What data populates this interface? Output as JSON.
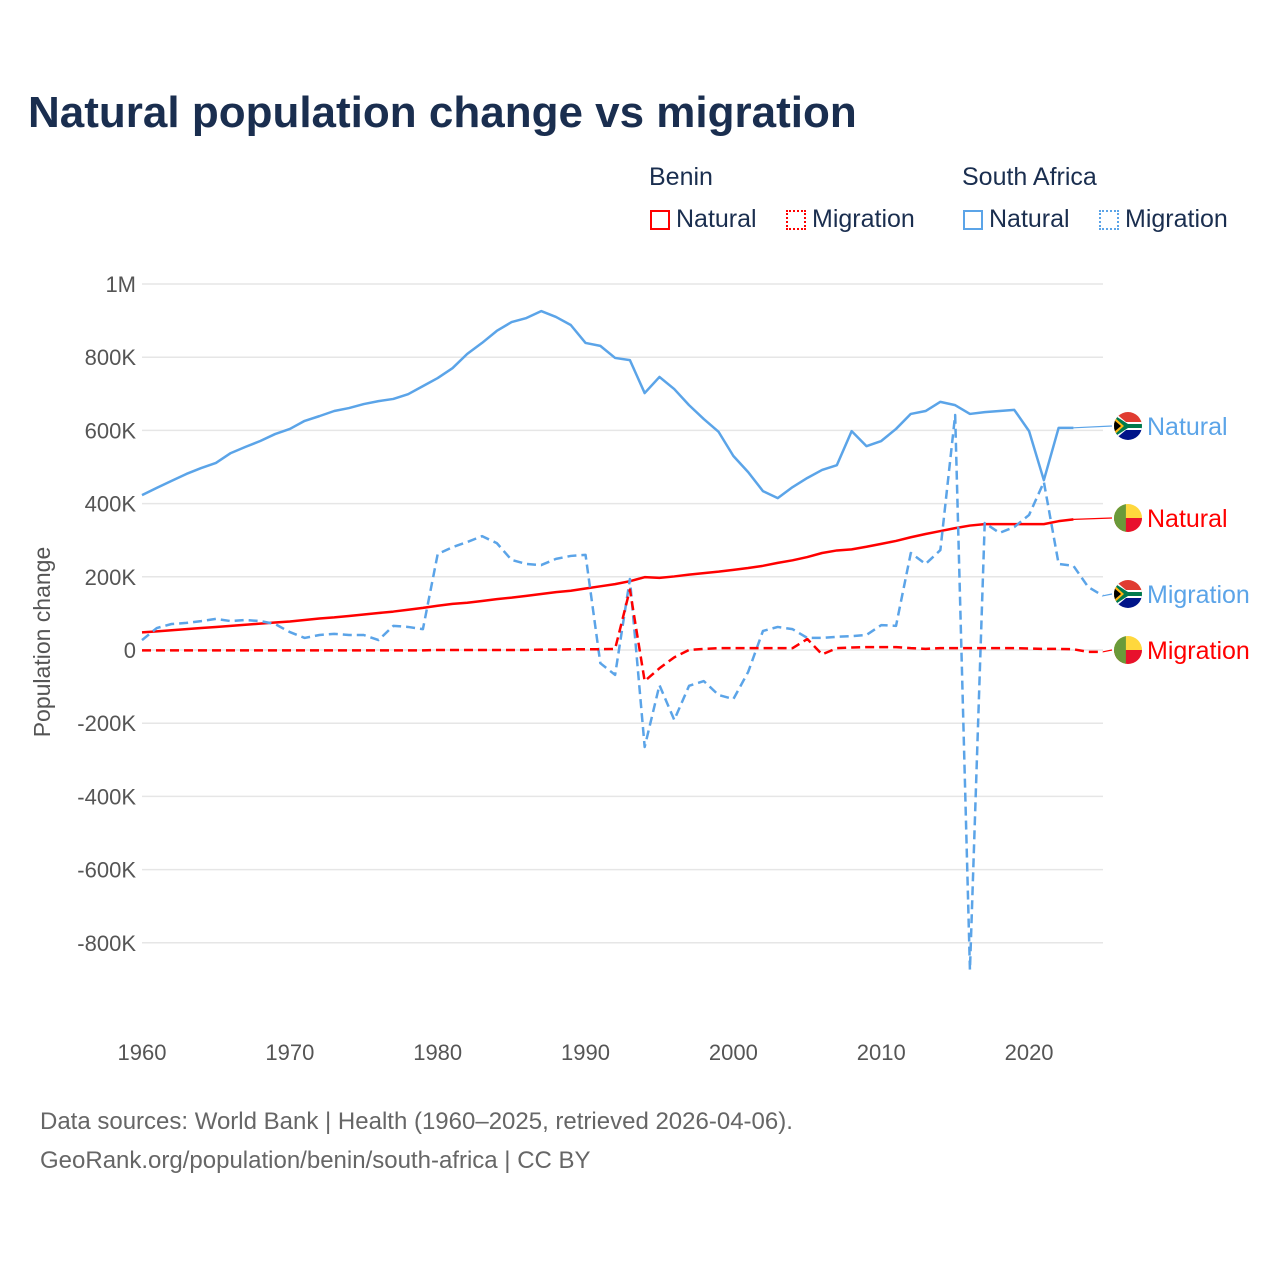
{
  "title": "Natural population change vs migration",
  "legend": {
    "groups": [
      {
        "name": "Benin",
        "items": [
          "Natural",
          "Migration"
        ]
      },
      {
        "name": "South Africa",
        "items": [
          "Natural",
          "Migration"
        ]
      }
    ]
  },
  "end_labels": {
    "sa_natural": "Natural",
    "benin_natural": "Natural",
    "sa_migration": "Migration",
    "benin_migration": "Migration"
  },
  "colors": {
    "benin": "#ff0000",
    "south_africa": "#5ba4e8",
    "grid": "#e6e6e6",
    "title": "#1a2e4f"
  },
  "sources": {
    "line1": "Data sources: World Bank | Health (1960–2025, retrieved 2026-04-06).",
    "line2": "GeoRank.org/population/benin/south-africa | CC BY"
  },
  "chart_data": {
    "type": "line",
    "title": "Natural population change vs migration",
    "xlabel": "",
    "ylabel": "Population change",
    "xlim": [
      1960,
      2025
    ],
    "ylim": [
      -1000000,
      1000000
    ],
    "x_ticks": [
      1960,
      1970,
      1980,
      1990,
      2000,
      2010,
      2020
    ],
    "x_tick_labels": [
      "1960",
      "1970",
      "1980",
      "1990",
      "2000",
      "2010",
      "2020"
    ],
    "y_ticks": [
      1000000,
      800000,
      600000,
      400000,
      200000,
      0,
      -200000,
      -400000,
      -600000,
      -800000
    ],
    "y_tick_labels": [
      "1M",
      "800K",
      "600K",
      "400K",
      "200K",
      "0",
      "-200K",
      "-400K",
      "-600K",
      "-800K"
    ],
    "grid": true,
    "legend_position": "top-right",
    "series": [
      {
        "key": "sa_natural",
        "name": "South Africa Natural",
        "color": "#5ba4e8",
        "dash": false,
        "start": 1960,
        "values": [
          423000,
          443000,
          462000,
          481000,
          497000,
          511000,
          538000,
          555000,
          571000,
          590000,
          604000,
          626000,
          639000,
          653000,
          661000,
          672000,
          680000,
          686000,
          699000,
          721000,
          743000,
          770000,
          809000,
          839000,
          872000,
          896000,
          907000,
          926000,
          910000,
          888000,
          839000,
          831000,
          798000,
          792000,
          702000,
          746000,
          713000,
          669000,
          631000,
          596000,
          530000,
          486000,
          434000,
          415000,
          445000,
          470000,
          492000,
          505000,
          598000,
          557000,
          571000,
          604000,
          645000,
          653000,
          678000,
          669000,
          645000,
          650000,
          653000,
          656000,
          598000,
          464000,
          607000,
          607000
        ]
      },
      {
        "key": "benin_natural",
        "name": "Benin Natural",
        "color": "#ff0000",
        "dash": false,
        "start": 1960,
        "values": [
          48000,
          51000,
          54000,
          57000,
          60000,
          63000,
          66000,
          69000,
          72000,
          75000,
          78000,
          82000,
          86000,
          89000,
          93000,
          97000,
          101000,
          105000,
          110000,
          115000,
          121000,
          126000,
          129000,
          134000,
          139000,
          143000,
          148000,
          153000,
          158000,
          162000,
          168000,
          174000,
          180000,
          188000,
          199000,
          197000,
          201000,
          206000,
          210000,
          214000,
          219000,
          224000,
          230000,
          238000,
          245000,
          254000,
          265000,
          272000,
          275000,
          282000,
          290000,
          298000,
          308000,
          317000,
          325000,
          333000,
          340000,
          344000,
          344000,
          344000,
          344000,
          344000,
          352000,
          357000
        ]
      },
      {
        "key": "sa_migration",
        "name": "South Africa Migration",
        "color": "#5ba4e8",
        "dash": true,
        "start": 1960,
        "values": [
          27000,
          60000,
          71000,
          74000,
          79000,
          85000,
          79000,
          82000,
          79000,
          71000,
          49000,
          33000,
          41000,
          44000,
          41000,
          41000,
          27000,
          66000,
          63000,
          57000,
          262000,
          281000,
          295000,
          311000,
          292000,
          246000,
          235000,
          232000,
          249000,
          257000,
          260000,
          -36000,
          -68000,
          194000,
          -265000,
          -96000,
          -191000,
          -98000,
          -85000,
          -123000,
          -134000,
          -60000,
          52000,
          63000,
          57000,
          33000,
          33000,
          36000,
          38000,
          41000,
          68000,
          66000,
          265000,
          235000,
          273000,
          642000,
          -874000,
          347000,
          320000,
          336000,
          369000,
          459000,
          235000,
          230000,
          172000,
          148000
        ]
      },
      {
        "key": "benin_migration",
        "name": "Benin Migration",
        "color": "#ff0000",
        "dash": true,
        "start": 1960,
        "values": [
          -1000,
          -1000,
          -1000,
          -1000,
          -1000,
          -1000,
          -1000,
          -1000,
          -1000,
          -1000,
          -1000,
          -1000,
          -1000,
          -1000,
          -1000,
          -1000,
          -1000,
          -1000,
          -1000,
          -1000,
          0,
          0,
          0,
          0,
          0,
          0,
          0,
          1000,
          1000,
          2000,
          2000,
          2000,
          3000,
          165000,
          -85000,
          -50000,
          -20000,
          0,
          3000,
          5000,
          5000,
          5000,
          5000,
          5000,
          5000,
          30000,
          -12000,
          5000,
          7000,
          8000,
          8000,
          8000,
          5000,
          3000,
          5000,
          5000,
          5000,
          5000,
          5000,
          5000,
          4000,
          3000,
          3000,
          2000,
          -5000,
          -5000
        ]
      }
    ]
  }
}
